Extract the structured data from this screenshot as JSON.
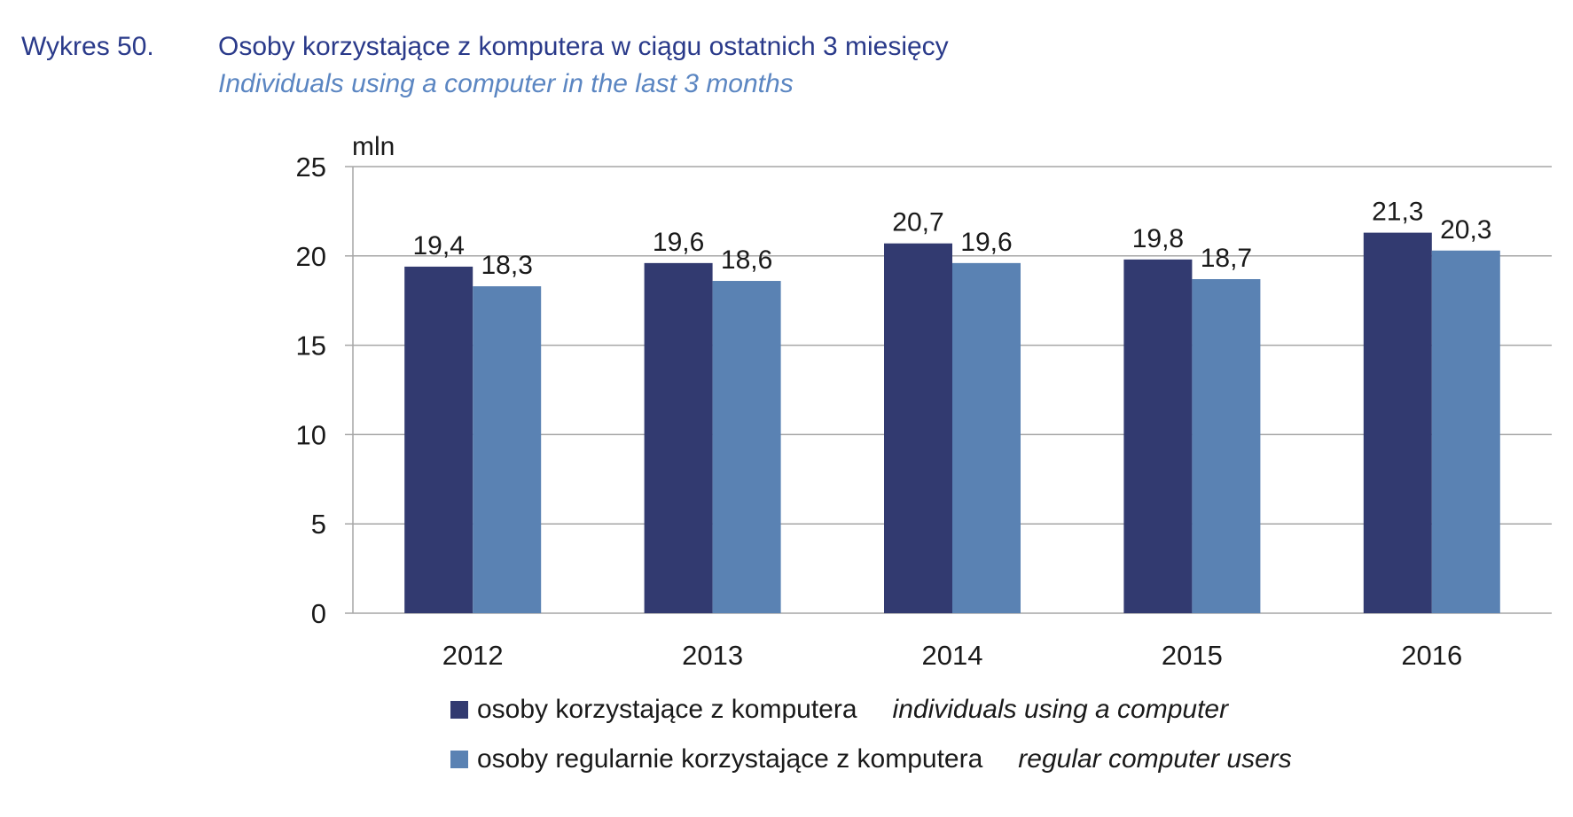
{
  "header": {
    "label": "Wykres 50.",
    "title": "Osoby korzystające z komputera w ciągu ostatnich 3 miesięcy",
    "subtitle": "Individuals using a computer in the last 3 months"
  },
  "legend": [
    {
      "pl": "osoby korzystające z komputera",
      "en": "individuals using a computer",
      "color": "#323a70"
    },
    {
      "pl": "osoby regularnie korzystające z komputera",
      "en": "regular computer users",
      "color": "#5a82b3"
    }
  ],
  "chart_data": {
    "type": "bar",
    "unit_label": "mln",
    "categories": [
      "2012",
      "2013",
      "2014",
      "2015",
      "2016"
    ],
    "series": [
      {
        "name": "osoby korzystające z komputera",
        "values": [
          19.4,
          19.6,
          20.7,
          19.8,
          21.3
        ],
        "labels": [
          "19,4",
          "19,6",
          "20,7",
          "19,8",
          "21,3"
        ],
        "color": "#323a70"
      },
      {
        "name": "osoby regularnie korzystające z komputera",
        "values": [
          18.3,
          18.6,
          19.6,
          18.7,
          20.3
        ],
        "labels": [
          "18,3",
          "18,6",
          "19,6",
          "18,7",
          "20,3"
        ],
        "color": "#5a82b3"
      }
    ],
    "ylim": [
      0,
      25
    ],
    "yticks": [
      0,
      5,
      10,
      15,
      20,
      25
    ],
    "grid": true,
    "legend_position": "bottom"
  }
}
